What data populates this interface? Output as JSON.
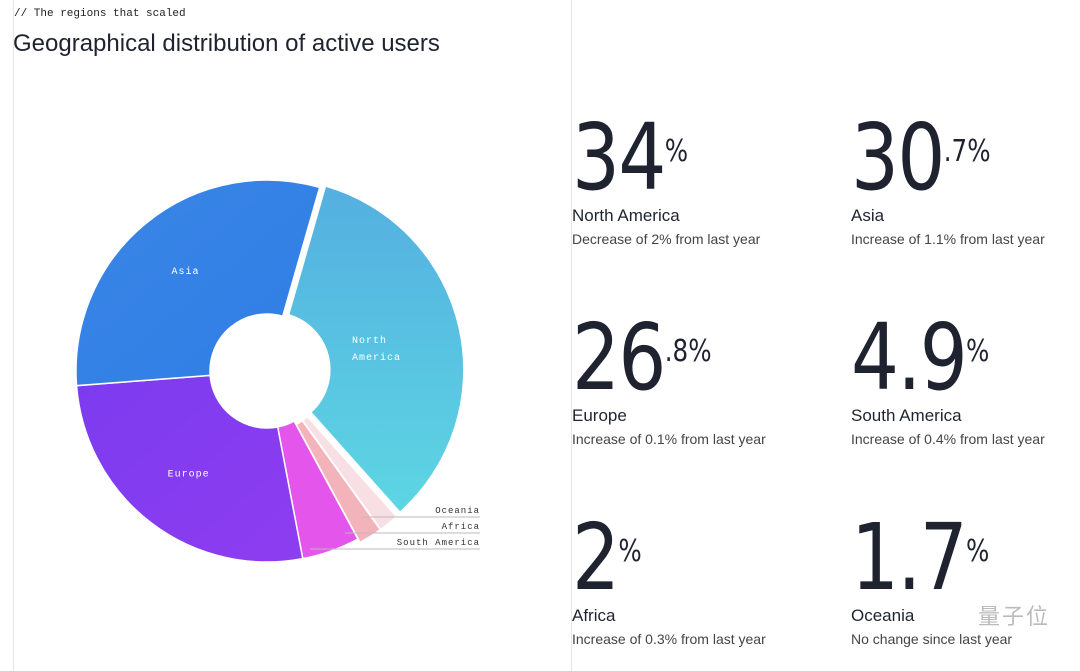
{
  "kicker": "// The regions that scaled",
  "title": "Geographical distribution of active users",
  "watermark": "量子位",
  "chart_data": {
    "type": "pie",
    "donut": true,
    "title": "Geographical distribution of active users",
    "categories": [
      "North America",
      "Oceania",
      "Africa",
      "South America",
      "Europe",
      "Asia"
    ],
    "values": [
      34,
      1.7,
      2,
      4.9,
      26.8,
      30.7
    ],
    "colors": [
      "#58c4e2",
      "#f8dfe3",
      "#f2b3bb",
      "#e455ec",
      "#8a3cf0",
      "#3382e6"
    ],
    "slice_labels": {
      "North America": [
        "North",
        "America"
      ],
      "Asia": [
        "Asia"
      ],
      "Europe": [
        "Europe"
      ]
    },
    "callout_labels": [
      "Oceania",
      "Africa",
      "South America"
    ]
  },
  "stats": [
    {
      "value": "34",
      "decimal": "",
      "region": "North America",
      "note": "Decrease of 2% from last year"
    },
    {
      "value": "30",
      "decimal": ".7",
      "region": "Asia",
      "note": "Increase of 1.1% from last year"
    },
    {
      "value": "26",
      "decimal": ".8",
      "region": "Europe",
      "note": "Increase of 0.1% from last year"
    },
    {
      "value": "4.9",
      "decimal": "",
      "region": "South America",
      "note": "Increase of 0.4% from last year"
    },
    {
      "value": "2",
      "decimal": "",
      "region": "Africa",
      "note": "Increase of 0.3% from last year"
    },
    {
      "value": "1.7",
      "decimal": "",
      "region": "Oceania",
      "note": "No change since last year"
    }
  ],
  "percent_sign": "%"
}
